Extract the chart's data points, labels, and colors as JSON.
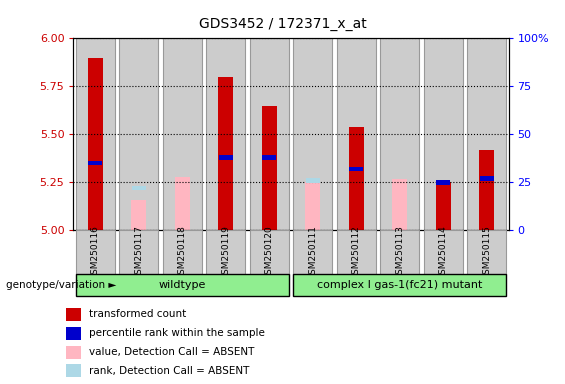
{
  "title": "GDS3452 / 172371_x_at",
  "samples": [
    "GSM250116",
    "GSM250117",
    "GSM250118",
    "GSM250119",
    "GSM250120",
    "GSM250111",
    "GSM250112",
    "GSM250113",
    "GSM250114",
    "GSM250115"
  ],
  "red_values": [
    5.9,
    null,
    null,
    5.8,
    5.65,
    null,
    5.54,
    null,
    5.25,
    5.42
  ],
  "red_absent_values": [
    null,
    5.16,
    5.28,
    null,
    null,
    5.25,
    null,
    5.27,
    null,
    null
  ],
  "blue_values": [
    5.35,
    null,
    null,
    5.38,
    5.38,
    null,
    5.32,
    null,
    5.25,
    5.27
  ],
  "blue_absent_values": [
    null,
    5.22,
    null,
    null,
    null,
    5.26,
    null,
    null,
    null,
    null
  ],
  "ylim_left": [
    5.0,
    6.0
  ],
  "ylim_right": [
    0,
    100
  ],
  "yticks_left": [
    5.0,
    5.25,
    5.5,
    5.75,
    6.0
  ],
  "yticks_right": [
    0,
    25,
    50,
    75,
    100
  ],
  "red_color": "#CC0000",
  "red_absent_color": "#FFB6C1",
  "blue_color": "#0000CC",
  "blue_absent_color": "#ADD8E6",
  "bg_color": "#CCCCCC",
  "bar_width": 0.35,
  "bar_base": 5.0,
  "legend_items": [
    {
      "color": "#CC0000",
      "label": "transformed count"
    },
    {
      "color": "#0000CC",
      "label": "percentile rank within the sample"
    },
    {
      "color": "#FFB6C1",
      "label": "value, Detection Call = ABSENT"
    },
    {
      "color": "#ADD8E6",
      "label": "rank, Detection Call = ABSENT"
    }
  ],
  "group_row_label": "genotype/variation",
  "group1_label": "wildtype",
  "group2_label": "complex I gas-1(fc21) mutant",
  "group_color": "#90EE90"
}
